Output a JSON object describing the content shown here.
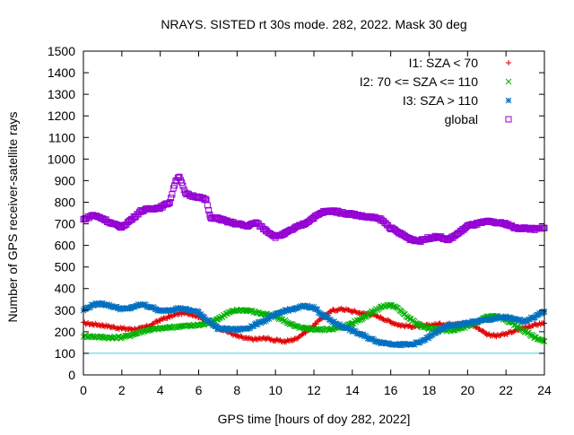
{
  "chart_data": {
    "type": "scatter",
    "title": "NRAYS. SISTED rt 30s mode. 282, 2022. Mask 30 deg",
    "xlabel": "GPS time [hours of doy 282, 2022]",
    "ylabel": "Number of GPS receiver-satellite rays",
    "xlim": [
      0,
      24
    ],
    "ylim": [
      0,
      1500
    ],
    "xticks": [
      "0",
      "2",
      "4",
      "6",
      "8",
      "10",
      "12",
      "14",
      "16",
      "18",
      "20",
      "22",
      "24"
    ],
    "yticks": [
      "0",
      "100",
      "200",
      "300",
      "400",
      "500",
      "600",
      "700",
      "800",
      "900",
      "1000",
      "1100",
      "1200",
      "1300",
      "1400",
      "1500"
    ],
    "reference_line": {
      "y": 100,
      "color": "#40d0e0"
    },
    "legend_position": "top-right",
    "series": [
      {
        "name": "I1: SZA < 70",
        "marker": "+",
        "color": "#e00000",
        "x": [
          0,
          0.5,
          1,
          1.5,
          2,
          2.5,
          3,
          3.5,
          4,
          4.5,
          5,
          5.5,
          6,
          6.5,
          7,
          7.5,
          8,
          8.5,
          9,
          9.5,
          10,
          10.5,
          11,
          11.5,
          12,
          12.5,
          13,
          13.5,
          14,
          14.5,
          15,
          15.5,
          16,
          16.5,
          17,
          17.5,
          18,
          18.5,
          19,
          19.5,
          20,
          20.5,
          21,
          21.5,
          22,
          22.5,
          23,
          23.5,
          24
        ],
        "y": [
          240,
          235,
          230,
          222,
          215,
          212,
          215,
          230,
          255,
          270,
          285,
          285,
          270,
          245,
          220,
          200,
          180,
          168,
          165,
          170,
          160,
          155,
          165,
          195,
          230,
          270,
          300,
          305,
          295,
          285,
          280,
          265,
          245,
          230,
          225,
          225,
          230,
          235,
          235,
          240,
          240,
          220,
          190,
          180,
          190,
          205,
          220,
          232,
          240
        ]
      },
      {
        "name": "I2: 70 <= SZA <= 110",
        "marker": "x",
        "color": "#00b000",
        "x": [
          0,
          0.5,
          1,
          1.5,
          2,
          2.5,
          3,
          3.5,
          4,
          4.5,
          5,
          5.5,
          6,
          6.5,
          7,
          7.5,
          8,
          8.5,
          9,
          9.5,
          10,
          10.5,
          11,
          11.5,
          12,
          12.5,
          13,
          13.5,
          14,
          14.5,
          15,
          15.5,
          16,
          16.5,
          17,
          17.5,
          18,
          18.5,
          19,
          19.5,
          20,
          20.5,
          21,
          21.5,
          22,
          22.5,
          23,
          23.5,
          24
        ],
        "y": [
          180,
          178,
          175,
          172,
          175,
          185,
          200,
          210,
          215,
          220,
          225,
          228,
          230,
          240,
          260,
          285,
          300,
          300,
          290,
          280,
          270,
          250,
          225,
          215,
          212,
          210,
          215,
          220,
          240,
          262,
          290,
          315,
          325,
          300,
          260,
          230,
          215,
          210,
          205,
          212,
          225,
          245,
          270,
          272,
          255,
          230,
          200,
          175,
          155
        ]
      },
      {
        "name": "I3: SZA > 110",
        "marker": "*",
        "color": "#0070c0",
        "x": [
          0,
          0.5,
          1,
          1.5,
          2,
          2.5,
          3,
          3.5,
          4,
          4.5,
          5,
          5.5,
          6,
          6.5,
          7,
          7.5,
          8,
          8.5,
          9,
          9.5,
          10,
          10.5,
          11,
          11.5,
          12,
          12.5,
          13,
          13.5,
          14,
          14.5,
          15,
          15.5,
          16,
          16.5,
          17,
          17.5,
          18,
          18.5,
          19,
          19.5,
          20,
          20.5,
          21,
          21.5,
          22,
          22.5,
          23,
          23.5,
          24
        ],
        "y": [
          300,
          325,
          330,
          318,
          305,
          310,
          328,
          315,
          295,
          302,
          308,
          300,
          290,
          250,
          215,
          212,
          210,
          215,
          235,
          255,
          278,
          298,
          305,
          320,
          312,
          275,
          245,
          225,
          205,
          185,
          165,
          150,
          145,
          140,
          140,
          150,
          175,
          205,
          228,
          232,
          240,
          248,
          255,
          262,
          268,
          255,
          250,
          270,
          292
        ]
      },
      {
        "name": "global",
        "marker": "square",
        "color": "#9400d3",
        "x": [
          0,
          0.5,
          1,
          1.5,
          2,
          2.5,
          3,
          3.5,
          4,
          4.5,
          4.8,
          5,
          5.3,
          5.6,
          6,
          6.4,
          6.6,
          7,
          7.5,
          8,
          8.5,
          9,
          9.5,
          10,
          10.5,
          11,
          11.5,
          12,
          12.5,
          13,
          13.5,
          14,
          14.5,
          15,
          15.5,
          16,
          16.5,
          17,
          17.5,
          18,
          18.5,
          19,
          19.5,
          20,
          20.5,
          21,
          21.5,
          22,
          22.5,
          23,
          23.5,
          24
        ],
        "y": [
          720,
          740,
          725,
          700,
          685,
          720,
          760,
          770,
          775,
          800,
          900,
          920,
          840,
          830,
          825,
          810,
          730,
          725,
          710,
          700,
          690,
          705,
          670,
          640,
          655,
          680,
          700,
          730,
          755,
          760,
          750,
          745,
          735,
          730,
          720,
          680,
          655,
          630,
          620,
          635,
          640,
          625,
          655,
          690,
          700,
          710,
          705,
          700,
          680,
          680,
          675,
          680
        ]
      }
    ]
  }
}
